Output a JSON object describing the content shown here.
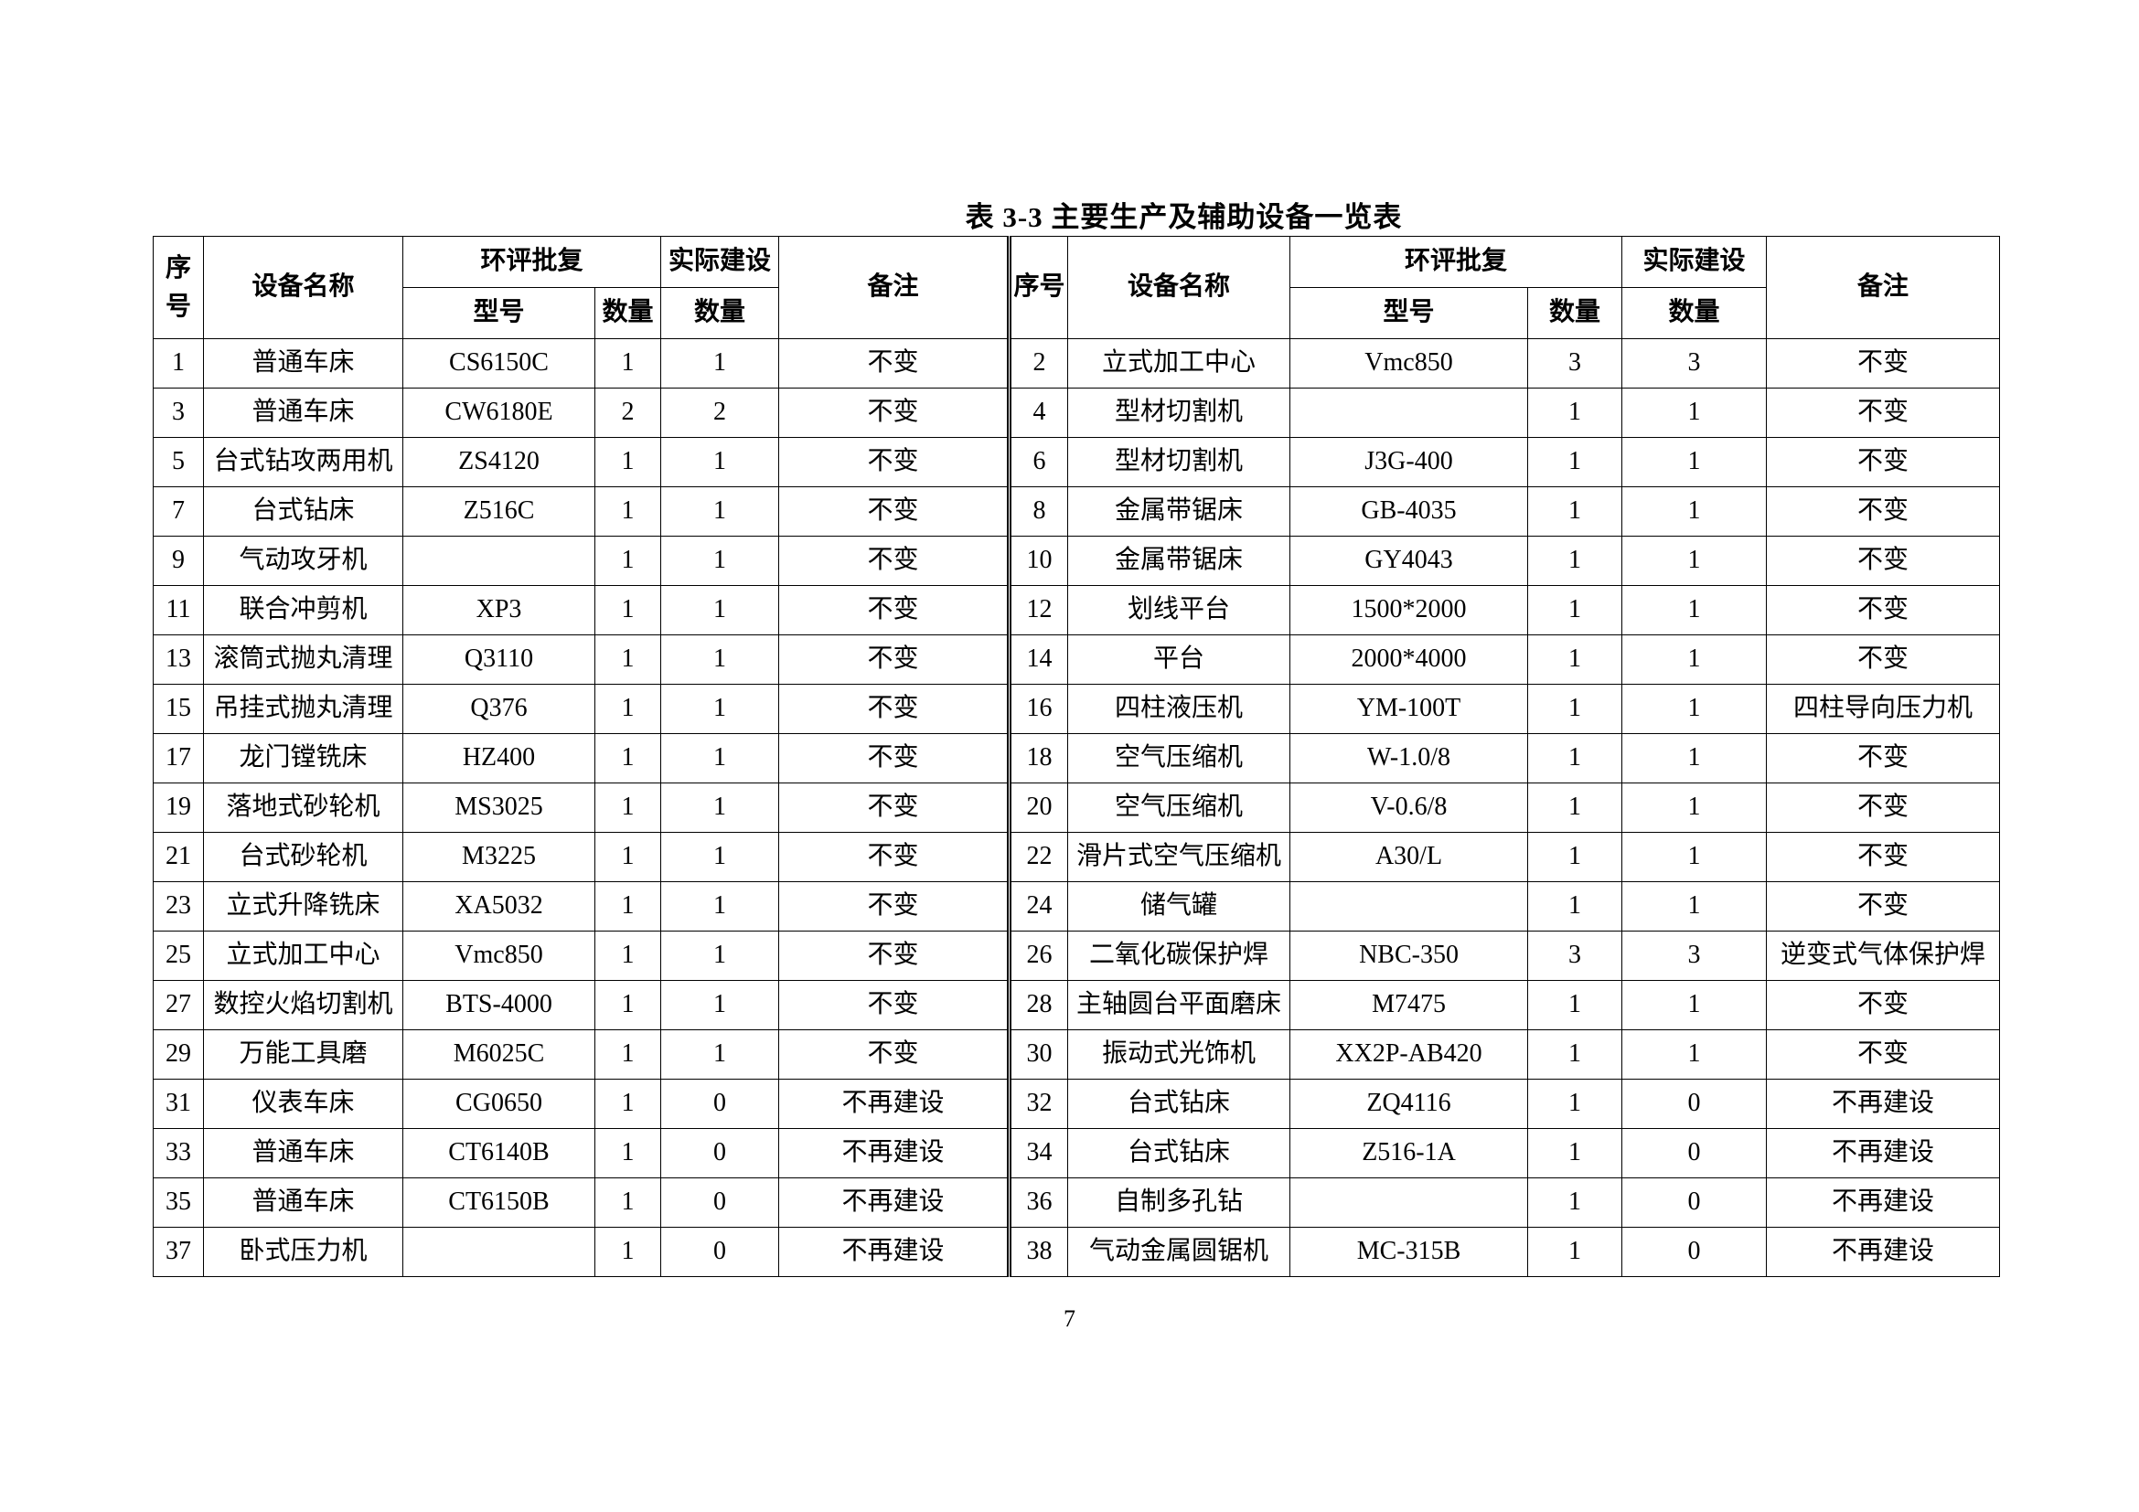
{
  "title": "表 3-3   主要生产及辅助设备一览表",
  "header": {
    "seq": "序号",
    "name": "设备名称",
    "approval": "环评批复",
    "actual": "实际建设",
    "model": "型号",
    "qty": "数量",
    "actual_qty": "数量",
    "remark": "备注"
  },
  "rows": [
    [
      [
        "1",
        "普通车床",
        "CS6150C",
        "1",
        "1",
        "不变"
      ],
      [
        "2",
        "立式加工中心",
        "Vmc850",
        "3",
        "3",
        "不变"
      ]
    ],
    [
      [
        "3",
        "普通车床",
        "CW6180E",
        "2",
        "2",
        "不变"
      ],
      [
        "4",
        "型材切割机",
        "",
        "1",
        "1",
        "不变"
      ]
    ],
    [
      [
        "5",
        "台式钻攻两用机",
        "ZS4120",
        "1",
        "1",
        "不变"
      ],
      [
        "6",
        "型材切割机",
        "J3G-400",
        "1",
        "1",
        "不变"
      ]
    ],
    [
      [
        "7",
        "台式钻床",
        "Z516C",
        "1",
        "1",
        "不变"
      ],
      [
        "8",
        "金属带锯床",
        "GB-4035",
        "1",
        "1",
        "不变"
      ]
    ],
    [
      [
        "9",
        "气动攻牙机",
        "",
        "1",
        "1",
        "不变"
      ],
      [
        "10",
        "金属带锯床",
        "GY4043",
        "1",
        "1",
        "不变"
      ]
    ],
    [
      [
        "11",
        "联合冲剪机",
        "XP3",
        "1",
        "1",
        "不变"
      ],
      [
        "12",
        "划线平台",
        "1500*2000",
        "1",
        "1",
        "不变"
      ]
    ],
    [
      [
        "13",
        "滚筒式抛丸清理",
        "Q3110",
        "1",
        "1",
        "不变"
      ],
      [
        "14",
        "平台",
        "2000*4000",
        "1",
        "1",
        "不变"
      ]
    ],
    [
      [
        "15",
        "吊挂式抛丸清理",
        "Q376",
        "1",
        "1",
        "不变"
      ],
      [
        "16",
        "四柱液压机",
        "YM-100T",
        "1",
        "1",
        "四柱导向压力机"
      ]
    ],
    [
      [
        "17",
        "龙门镗铣床",
        "HZ400",
        "1",
        "1",
        "不变"
      ],
      [
        "18",
        "空气压缩机",
        "W-1.0/8",
        "1",
        "1",
        "不变"
      ]
    ],
    [
      [
        "19",
        "落地式砂轮机",
        "MS3025",
        "1",
        "1",
        "不变"
      ],
      [
        "20",
        "空气压缩机",
        "V-0.6/8",
        "1",
        "1",
        "不变"
      ]
    ],
    [
      [
        "21",
        "台式砂轮机",
        "M3225",
        "1",
        "1",
        "不变"
      ],
      [
        "22",
        "滑片式空气压缩机",
        "A30/L",
        "1",
        "1",
        "不变"
      ]
    ],
    [
      [
        "23",
        "立式升降铣床",
        "XA5032",
        "1",
        "1",
        "不变"
      ],
      [
        "24",
        "储气罐",
        "",
        "1",
        "1",
        "不变"
      ]
    ],
    [
      [
        "25",
        "立式加工中心",
        "Vmc850",
        "1",
        "1",
        "不变"
      ],
      [
        "26",
        "二氧化碳保护焊",
        "NBC-350",
        "3",
        "3",
        "逆变式气体保护焊"
      ]
    ],
    [
      [
        "27",
        "数控火焰切割机",
        "BTS-4000",
        "1",
        "1",
        "不变"
      ],
      [
        "28",
        "主轴圆台平面磨床",
        "M7475",
        "1",
        "1",
        "不变"
      ]
    ],
    [
      [
        "29",
        "万能工具磨",
        "M6025C",
        "1",
        "1",
        "不变"
      ],
      [
        "30",
        "振动式光饰机",
        "XX2P-AB420",
        "1",
        "1",
        "不变"
      ]
    ],
    [
      [
        "31",
        "仪表车床",
        "CG0650",
        "1",
        "0",
        "不再建设"
      ],
      [
        "32",
        "台式钻床",
        "ZQ4116",
        "1",
        "0",
        "不再建设"
      ]
    ],
    [
      [
        "33",
        "普通车床",
        "CT6140B",
        "1",
        "0",
        "不再建设"
      ],
      [
        "34",
        "台式钻床",
        "Z516-1A",
        "1",
        "0",
        "不再建设"
      ]
    ],
    [
      [
        "35",
        "普通车床",
        "CT6150B",
        "1",
        "0",
        "不再建设"
      ],
      [
        "36",
        "自制多孔钻",
        "",
        "1",
        "0",
        "不再建设"
      ]
    ],
    [
      [
        "37",
        "卧式压力机",
        "",
        "1",
        "0",
        "不再建设"
      ],
      [
        "38",
        "气动金属圆锯机",
        "MC-315B",
        "1",
        "0",
        "不再建设"
      ]
    ]
  ],
  "page_number": "7"
}
